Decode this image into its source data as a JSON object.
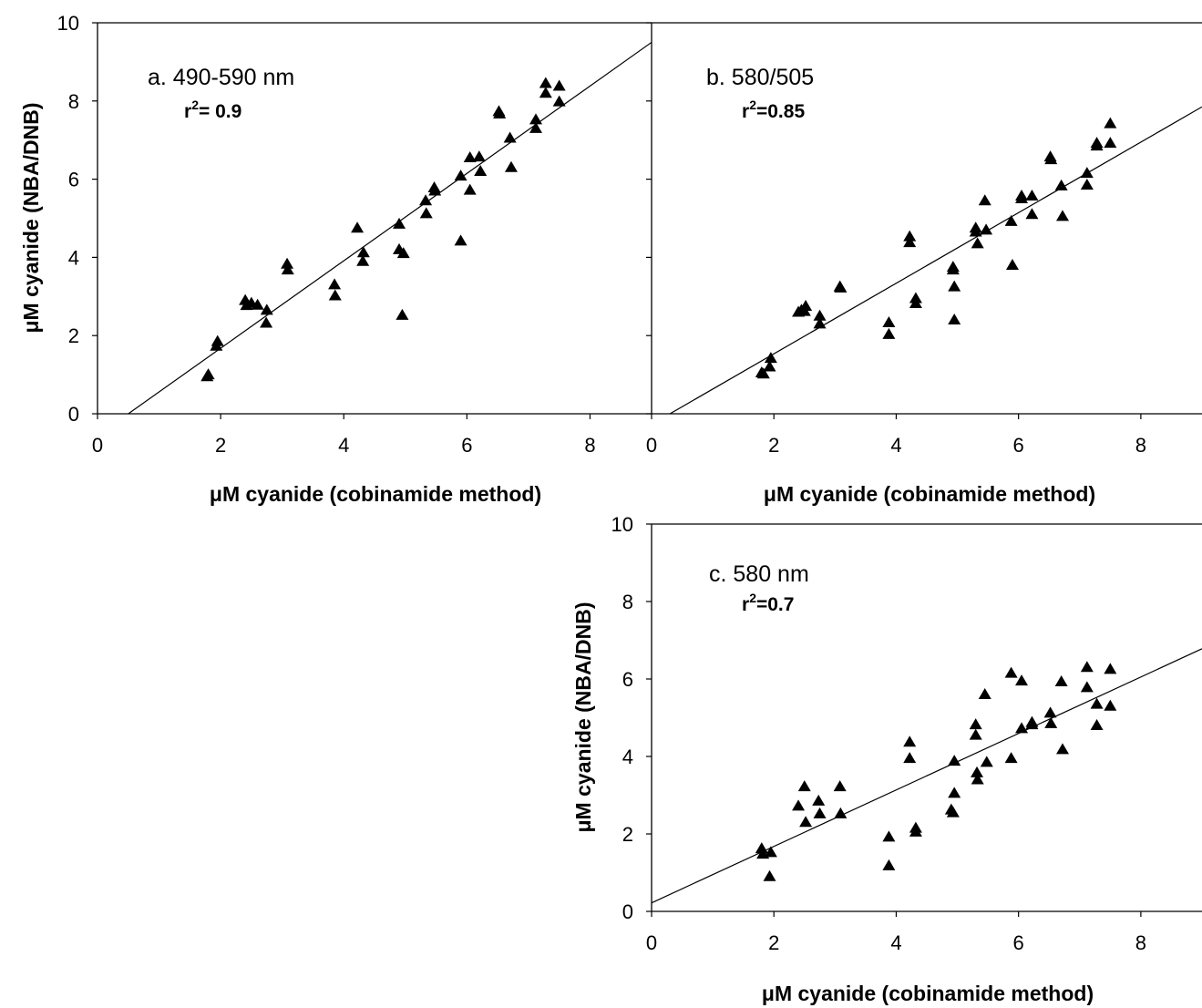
{
  "chart_data": [
    {
      "type": "scatter",
      "panel": "a",
      "title": "a. 490-590 nm",
      "r2_prefix": "r",
      "r2_value": "= 0.9",
      "xlabel": "μM cyanide (cobinamide method)",
      "ylabel": "μM cyanide (NBA/DNB)",
      "xlim": [
        0,
        9
      ],
      "ylim": [
        0,
        10
      ],
      "xticks": [
        0,
        2,
        4,
        6,
        8
      ],
      "yticks": [
        0,
        2,
        4,
        6,
        8,
        10
      ],
      "fit": {
        "x1": 0.5,
        "y1": 0.0,
        "x2": 9.0,
        "y2": 9.5
      },
      "x": [
        1.8,
        1.78,
        1.95,
        1.93,
        2.4,
        2.42,
        2.5,
        2.6,
        2.75,
        2.74,
        3.08,
        3.09,
        3.85,
        3.86,
        4.22,
        4.32,
        4.31,
        4.9,
        4.9,
        4.97,
        4.95,
        5.33,
        5.34,
        5.47,
        5.48,
        5.9,
        5.9,
        6.05,
        6.05,
        6.2,
        6.22,
        6.52,
        6.53,
        6.7,
        6.72,
        7.12,
        7.12,
        7.28,
        7.28,
        7.5,
        7.5
      ],
      "y": [
        1.0,
        0.95,
        1.85,
        1.73,
        2.9,
        2.77,
        2.83,
        2.78,
        2.65,
        2.32,
        3.83,
        3.68,
        3.3,
        3.02,
        4.75,
        4.12,
        3.9,
        4.85,
        4.2,
        4.1,
        2.52,
        5.45,
        5.12,
        5.78,
        5.7,
        6.08,
        4.42,
        6.55,
        5.72,
        6.57,
        6.2,
        7.73,
        7.67,
        7.05,
        6.3,
        7.52,
        7.3,
        8.45,
        8.2,
        8.38,
        7.98
      ]
    },
    {
      "type": "scatter",
      "panel": "b",
      "title": "b. 580/505",
      "r2_prefix": "r",
      "r2_value": "=0.85",
      "xlabel": "μM cyanide (cobinamide method)",
      "ylabel": "",
      "xlim": [
        0,
        9
      ],
      "ylim": [
        0,
        10
      ],
      "xticks": [
        0,
        2,
        4,
        6,
        8
      ],
      "yticks": [
        0,
        2,
        4,
        6,
        8,
        10
      ],
      "fit": {
        "x1": 0.3,
        "y1": 0.0,
        "x2": 9.0,
        "y2": 7.85
      },
      "x": [
        1.8,
        1.83,
        1.95,
        1.93,
        2.4,
        2.45,
        2.52,
        2.5,
        2.75,
        2.75,
        3.08,
        3.09,
        3.88,
        3.88,
        4.22,
        4.22,
        4.32,
        4.32,
        4.93,
        4.93,
        4.95,
        4.95,
        5.3,
        5.3,
        5.33,
        5.45,
        5.47,
        5.88,
        5.9,
        6.05,
        6.05,
        6.22,
        6.22,
        6.52,
        6.53,
        6.7,
        6.72,
        7.12,
        7.12,
        7.28,
        7.28,
        7.5,
        7.5
      ],
      "y": [
        1.05,
        1.02,
        1.42,
        1.2,
        2.6,
        2.65,
        2.75,
        2.62,
        2.5,
        2.3,
        3.25,
        3.22,
        2.33,
        2.03,
        4.53,
        4.38,
        2.95,
        2.82,
        3.75,
        3.68,
        3.25,
        2.4,
        4.75,
        4.65,
        4.35,
        5.45,
        4.7,
        4.92,
        3.8,
        5.57,
        5.5,
        5.57,
        5.1,
        6.57,
        6.5,
        5.83,
        5.05,
        6.15,
        5.85,
        6.92,
        6.85,
        7.42,
        6.92
      ]
    },
    {
      "type": "scatter",
      "panel": "c",
      "title": "c. 580 nm",
      "r2_prefix": "r",
      "r2_value": "=0.7",
      "xlabel": "μM cyanide (cobinamide method)",
      "ylabel": "μM cyanide (NBA/DNB)",
      "xlim": [
        0,
        9
      ],
      "ylim": [
        0,
        10
      ],
      "xticks": [
        0,
        2,
        4,
        6,
        8
      ],
      "yticks": [
        0,
        2,
        4,
        6,
        8,
        10
      ],
      "fit": {
        "x1": 0.0,
        "y1": 0.22,
        "x2": 9.0,
        "y2": 6.78
      },
      "x": [
        1.8,
        1.82,
        1.95,
        1.93,
        2.4,
        2.5,
        2.52,
        2.73,
        2.75,
        3.08,
        3.09,
        3.88,
        3.88,
        4.22,
        4.22,
        4.32,
        4.32,
        4.9,
        4.93,
        4.95,
        4.95,
        5.3,
        5.3,
        5.32,
        5.33,
        5.45,
        5.48,
        5.88,
        5.88,
        6.05,
        6.05,
        6.22,
        6.22,
        6.52,
        6.53,
        6.7,
        6.72,
        7.12,
        7.12,
        7.28,
        7.28,
        7.5,
        7.5
      ],
      "y": [
        1.62,
        1.48,
        1.52,
        0.9,
        2.72,
        3.22,
        2.3,
        2.85,
        2.52,
        3.22,
        2.52,
        1.92,
        1.18,
        4.37,
        3.95,
        2.15,
        2.05,
        2.62,
        2.55,
        3.88,
        3.05,
        4.82,
        4.55,
        3.58,
        3.4,
        5.6,
        3.85,
        6.15,
        3.95,
        5.95,
        4.72,
        4.88,
        4.82,
        5.12,
        4.85,
        5.93,
        4.18,
        6.3,
        5.78,
        5.35,
        4.8,
        6.25,
        5.3
      ]
    }
  ]
}
